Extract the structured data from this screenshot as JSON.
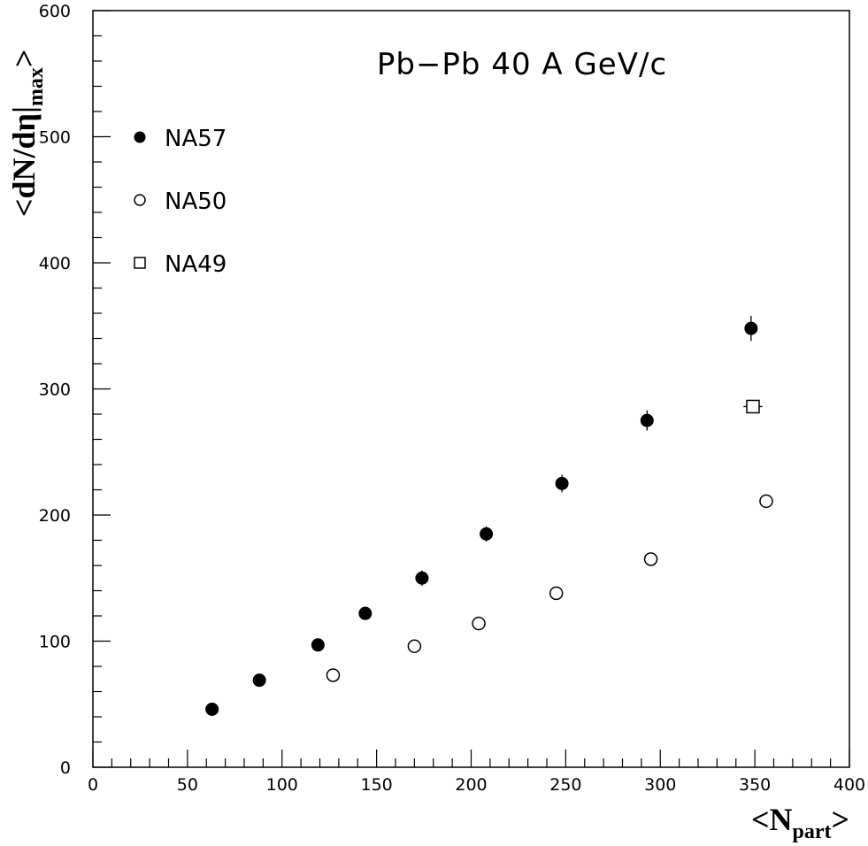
{
  "chart_data": {
    "type": "scatter",
    "title": "Pb−Pb 40 A GeV/c",
    "xlabel": {
      "main": "<N",
      "sub": "part",
      "close": ">"
    },
    "ylabel": {
      "main": "<dN/dη|",
      "sub": "max",
      "close": ">"
    },
    "xlim": [
      0,
      400
    ],
    "ylim": [
      0,
      600
    ],
    "x_ticks": [
      0,
      50,
      100,
      150,
      200,
      250,
      300,
      350,
      400
    ],
    "y_ticks": [
      0,
      100,
      200,
      300,
      400,
      500,
      600
    ],
    "x_tick_labels": [
      "0",
      "50",
      "100",
      "150",
      "200",
      "250",
      "300",
      "350",
      "400"
    ],
    "y_tick_labels": [
      "0",
      "100",
      "200",
      "300",
      "400",
      "500",
      "600"
    ],
    "grid": false,
    "legend_position": "top-left",
    "series": [
      {
        "name": "NA57",
        "marker": "filled-circle",
        "points": [
          {
            "x": 63,
            "y": 46,
            "yerr": 3
          },
          {
            "x": 88,
            "y": 69,
            "yerr": 3
          },
          {
            "x": 119,
            "y": 97,
            "yerr": 4
          },
          {
            "x": 144,
            "y": 122,
            "yerr": 5
          },
          {
            "x": 174,
            "y": 150,
            "yerr": 6
          },
          {
            "x": 208,
            "y": 185,
            "yerr": 6
          },
          {
            "x": 248,
            "y": 225,
            "yerr": 7
          },
          {
            "x": 293,
            "y": 275,
            "yerr": 8
          },
          {
            "x": 348,
            "y": 348,
            "yerr": 10
          }
        ]
      },
      {
        "name": "NA50",
        "marker": "open-circle",
        "points": [
          {
            "x": 127,
            "y": 73
          },
          {
            "x": 170,
            "y": 96
          },
          {
            "x": 204,
            "y": 114
          },
          {
            "x": 245,
            "y": 138
          },
          {
            "x": 295,
            "y": 165
          },
          {
            "x": 356,
            "y": 211
          }
        ]
      },
      {
        "name": "NA49",
        "marker": "open-square",
        "points": [
          {
            "x": 349,
            "y": 286,
            "xerr": 5
          }
        ]
      }
    ]
  }
}
